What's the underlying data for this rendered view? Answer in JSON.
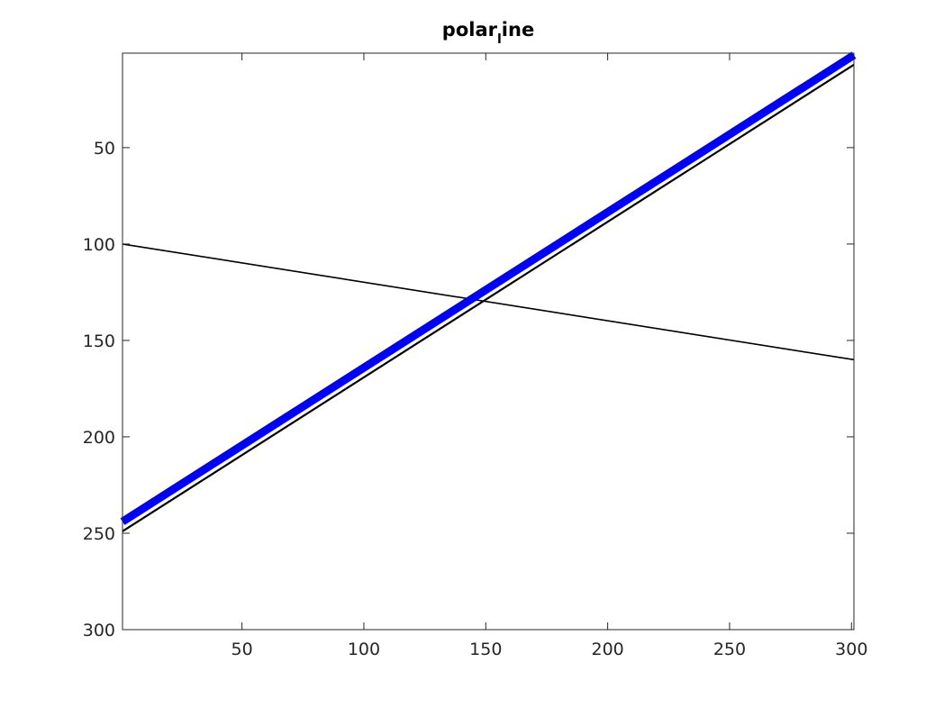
{
  "chart_data": {
    "type": "line",
    "title": "polar",
    "title_subscript": "l",
    "title_suffix": "ine",
    "xlabel": "",
    "ylabel": "",
    "xlim": [
      1,
      301
    ],
    "ylim": [
      1,
      300
    ],
    "y_reversed": true,
    "grid": false,
    "legend": "none",
    "x_ticks": [
      50,
      100,
      150,
      200,
      250,
      300
    ],
    "y_ticks": [
      50,
      100,
      150,
      200,
      250,
      300
    ],
    "background_color": "#ffffff",
    "axis_color": "#262626",
    "series": [
      {
        "x": [
          1,
          301
        ],
        "y": [
          100,
          160
        ],
        "color": "#000000"
      },
      {
        "x": [
          1,
          301
        ],
        "y": [
          249,
          7
        ],
        "color": "#000000"
      },
      {
        "x": [
          1,
          301
        ],
        "y": [
          244,
          2
        ],
        "color": "#0000ff"
      }
    ]
  }
}
